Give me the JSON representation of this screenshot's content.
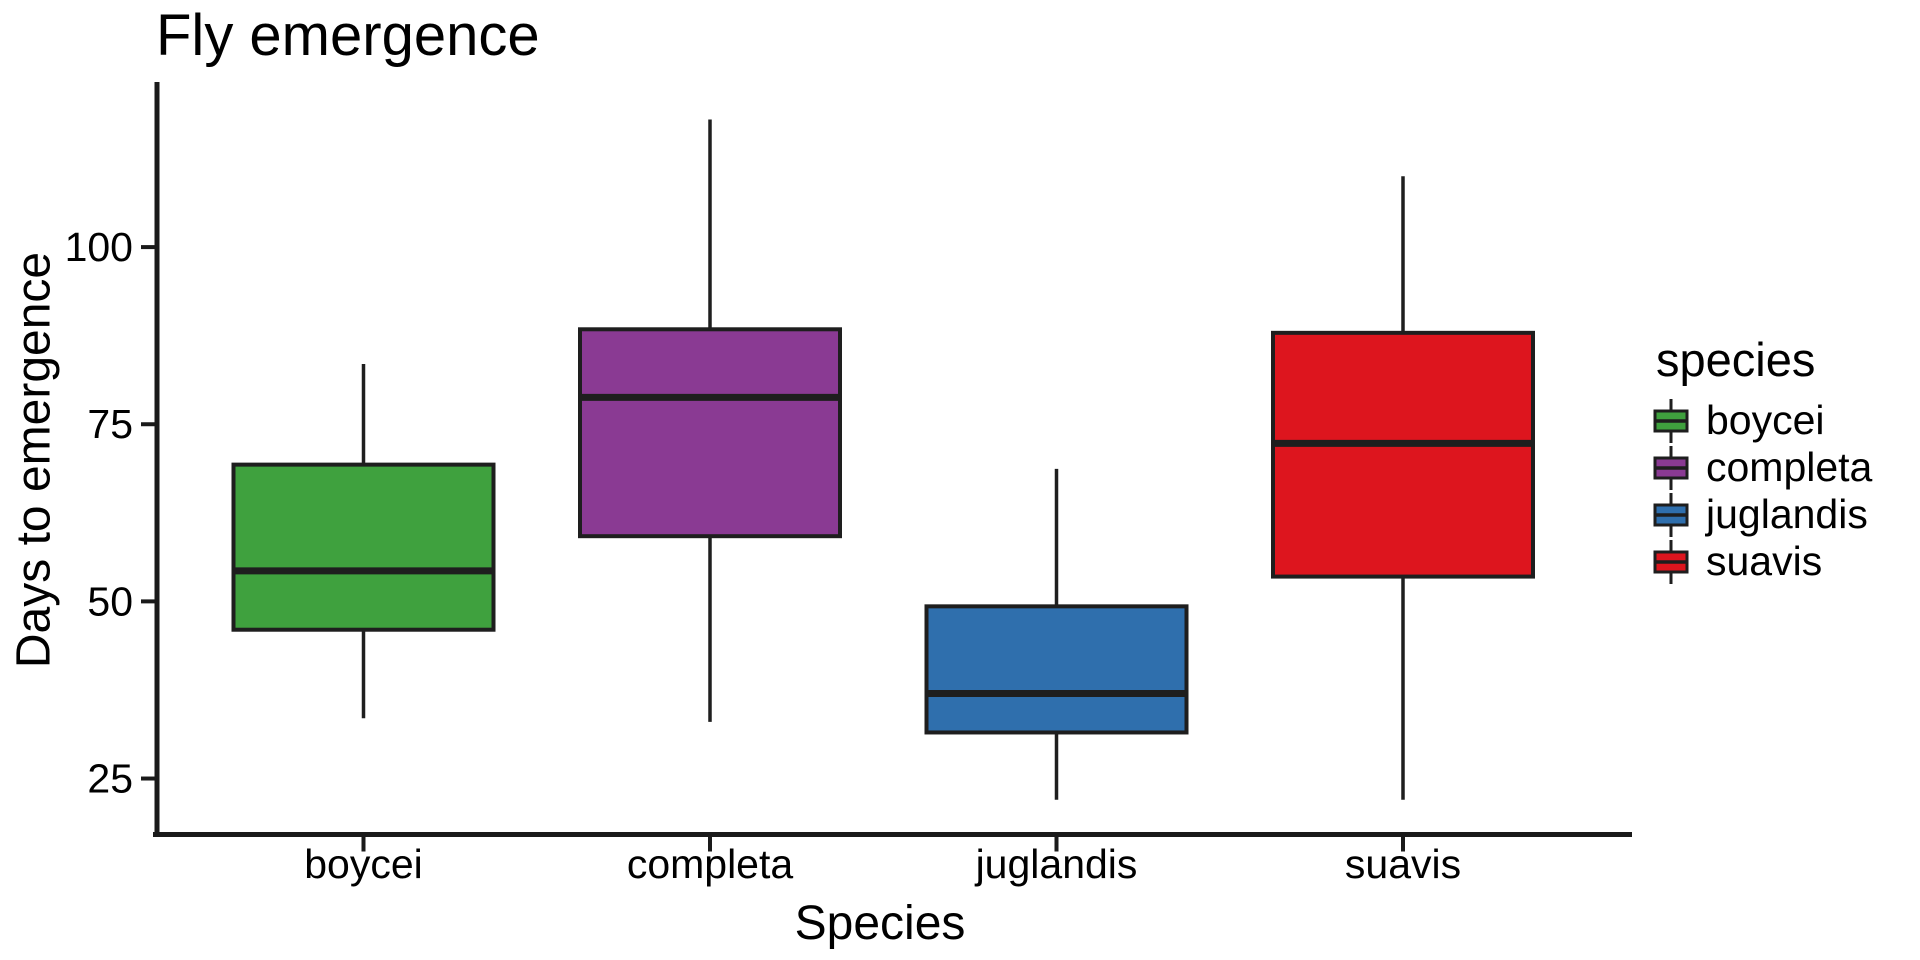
{
  "chart_data": {
    "type": "boxplot",
    "title": "Fly emergence",
    "xlabel": "Species",
    "ylabel": "Days to emergence",
    "categories": [
      "boycei",
      "completa",
      "juglandis",
      "suavis"
    ],
    "y_ticks": [
      25,
      50,
      75,
      100
    ],
    "ylim": [
      17.1,
      123.3
    ],
    "grid": "off",
    "series": [
      {
        "name": "boycei",
        "color": "#3FA13E",
        "min": 33.5,
        "q1": 46.0,
        "median": 54.3,
        "q3": 69.3,
        "max": 83.5
      },
      {
        "name": "completa",
        "color": "#8A3A93",
        "min": 33.0,
        "q1": 59.2,
        "median": 78.8,
        "q3": 88.4,
        "max": 118.0
      },
      {
        "name": "juglandis",
        "color": "#2F6FAD",
        "min": 22.0,
        "q1": 31.5,
        "median": 37.0,
        "q3": 49.3,
        "max": 68.7
      },
      {
        "name": "suavis",
        "color": "#DD151E",
        "min": 22.0,
        "q1": 53.5,
        "median": 72.3,
        "q3": 87.9,
        "max": 110.0
      }
    ],
    "legend": {
      "title": "species",
      "position": "right",
      "entries": [
        "boycei",
        "completa",
        "juglandis",
        "suavis"
      ]
    },
    "stroke_color": "#1E1E1E"
  }
}
